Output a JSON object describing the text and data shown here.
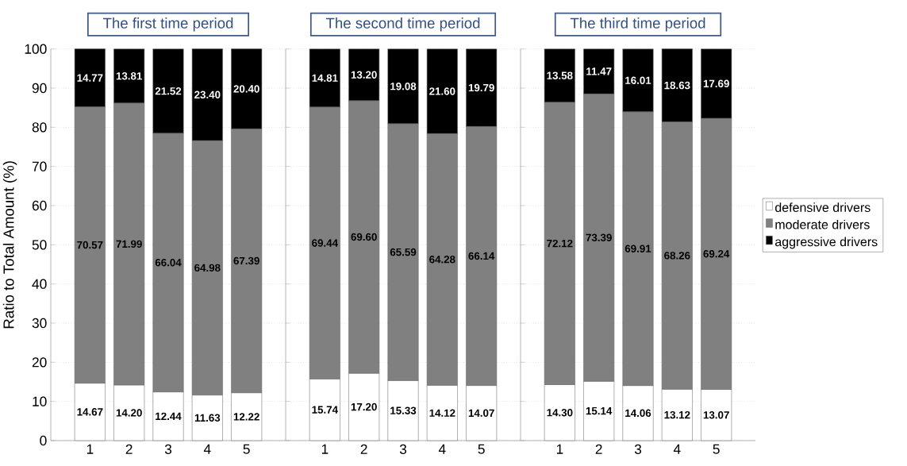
{
  "chart_data": [
    {
      "type": "bar",
      "stacked": true,
      "title": "The first time period",
      "ylabel": "Ratio to Total Amount (%)",
      "categories": [
        "1",
        "2",
        "3",
        "4",
        "5"
      ],
      "ylim": [
        0,
        100
      ],
      "yticks": [
        0,
        10,
        20,
        30,
        40,
        50,
        60,
        70,
        80,
        90,
        100
      ],
      "grid": "y",
      "series": [
        {
          "color": "#ffffff",
          "values": [
            14.67,
            14.2,
            12.44,
            11.63,
            12.22
          ],
          "value_labels": [
            "14.67",
            "14.20",
            "12.44",
            "11.63",
            "12.22"
          ]
        },
        {
          "color": "#808080",
          "values": [
            70.57,
            71.99,
            66.04,
            64.98,
            67.39
          ],
          "value_labels": [
            "70.57",
            "71.99",
            "66.04",
            "64.98",
            "67.39"
          ]
        },
        {
          "color": "#000000",
          "values": [
            14.77,
            13.81,
            21.52,
            23.4,
            20.4
          ],
          "value_labels": [
            "14.77",
            "13.81",
            "21.52",
            "23.40",
            "20.40"
          ]
        }
      ]
    },
    {
      "type": "bar",
      "stacked": true,
      "title": "The second time period",
      "categories": [
        "1",
        "2",
        "3",
        "4",
        "5"
      ],
      "ylim": [
        0,
        100
      ],
      "yticks": [
        0,
        10,
        20,
        30,
        40,
        50,
        60,
        70,
        80,
        90,
        100
      ],
      "grid": "y",
      "tick_labels": "x",
      "series": [
        {
          "color": "#ffffff",
          "values": [
            15.74,
            17.2,
            15.33,
            14.12,
            14.07
          ],
          "value_labels": [
            "15.74",
            "17.20",
            "15.33",
            "14.12",
            "14.07"
          ]
        },
        {
          "color": "#808080",
          "values": [
            69.44,
            69.6,
            65.59,
            64.28,
            66.14
          ],
          "value_labels": [
            "69.44",
            "69.60",
            "65.59",
            "64.28",
            "66.14"
          ]
        },
        {
          "color": "#000000",
          "values": [
            14.81,
            13.2,
            19.08,
            21.6,
            19.79
          ],
          "value_labels": [
            "14.81",
            "13.20",
            "19.08",
            "21.60",
            "19.79"
          ]
        }
      ]
    },
    {
      "type": "bar",
      "stacked": true,
      "title": "The third time period",
      "categories": [
        "1",
        "2",
        "3",
        "4",
        "5"
      ],
      "ylim": [
        0,
        100
      ],
      "yticks": [
        0,
        10,
        20,
        30,
        40,
        50,
        60,
        70,
        80,
        90,
        100
      ],
      "grid": "y",
      "tick_labels": "x",
      "legend": "right",
      "series": [
        {
          "name": "defensive drivers",
          "color": "#ffffff",
          "values": [
            14.3,
            15.14,
            14.06,
            13.12,
            13.07
          ],
          "value_labels": [
            "14.30",
            "15.14",
            "14.06",
            "13.12",
            "13.07"
          ]
        },
        {
          "name": "moderate drivers",
          "color": "#808080",
          "values": [
            72.12,
            73.39,
            69.91,
            68.26,
            69.24
          ],
          "value_labels": [
            "72.12",
            "73.39",
            "69.91",
            "68.26",
            "69.24"
          ]
        },
        {
          "name": "aggressive drivers",
          "color": "#000000",
          "values": [
            13.58,
            11.47,
            16.01,
            18.63,
            17.69
          ],
          "value_labels": [
            "13.58",
            "11.47",
            "16.01",
            "18.63",
            "17.69"
          ]
        }
      ]
    }
  ]
}
